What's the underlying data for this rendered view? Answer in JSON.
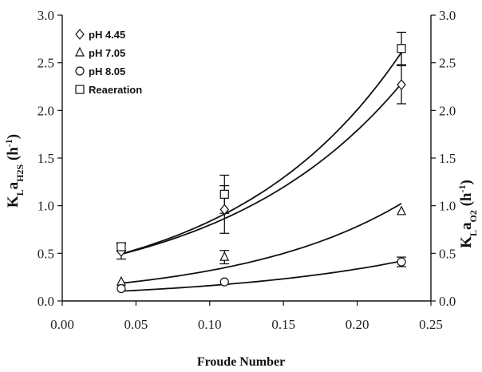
{
  "chart_data": {
    "type": "scatter",
    "xlabel": "Froude Number",
    "ylabel_left": {
      "main": "K",
      "sub1": "L",
      "mid": "a",
      "sub2": "H2S",
      "unit": " (h",
      "sup": "-1",
      "close": ")"
    },
    "ylabel_right": {
      "main": "K",
      "sub1": "L",
      "mid": "a",
      "sub2": "O2",
      "unit": " (h",
      "sup": "-1",
      "close": ")"
    },
    "xlim": [
      0.0,
      0.25
    ],
    "ylim": [
      0.0,
      3.0
    ],
    "x_ticks": [
      "0.00",
      "0.05",
      "0.10",
      "0.15",
      "0.20",
      "0.25"
    ],
    "y_ticks": [
      "0.0",
      "0.5",
      "1.0",
      "1.5",
      "2.0",
      "2.5",
      "3.0"
    ],
    "legend_position": "top-left",
    "series": [
      {
        "name": "pH 4.45",
        "marker": "diamond",
        "x": [
          0.04,
          0.11,
          0.23
        ],
        "y": [
          0.52,
          0.96,
          2.27
        ],
        "err": [
          0.08,
          0.25,
          0.2
        ],
        "fit": {
          "a": 0.355,
          "b": 8.09
        }
      },
      {
        "name": "pH 7.05",
        "marker": "triangle",
        "x": [
          0.04,
          0.11,
          0.23
        ],
        "y": [
          0.2,
          0.46,
          0.94
        ],
        "err": [
          0.0,
          0.07,
          0.0
        ],
        "fit": {
          "a": 0.13,
          "b": 8.97
        }
      },
      {
        "name": "pH 8.05",
        "marker": "circle",
        "x": [
          0.04,
          0.11,
          0.23
        ],
        "y": [
          0.13,
          0.2,
          0.41
        ],
        "err": [
          0.0,
          0.0,
          0.05
        ],
        "fit": {
          "a": 0.077,
          "b": 7.36
        }
      },
      {
        "name": "Reaeration",
        "marker": "square",
        "x": [
          0.04,
          0.11,
          0.23
        ],
        "y": [
          0.57,
          1.12,
          2.65
        ],
        "err": [
          0.04,
          0.2,
          0.17
        ],
        "fit": {
          "a": 0.348,
          "b": 8.76
        }
      }
    ]
  }
}
